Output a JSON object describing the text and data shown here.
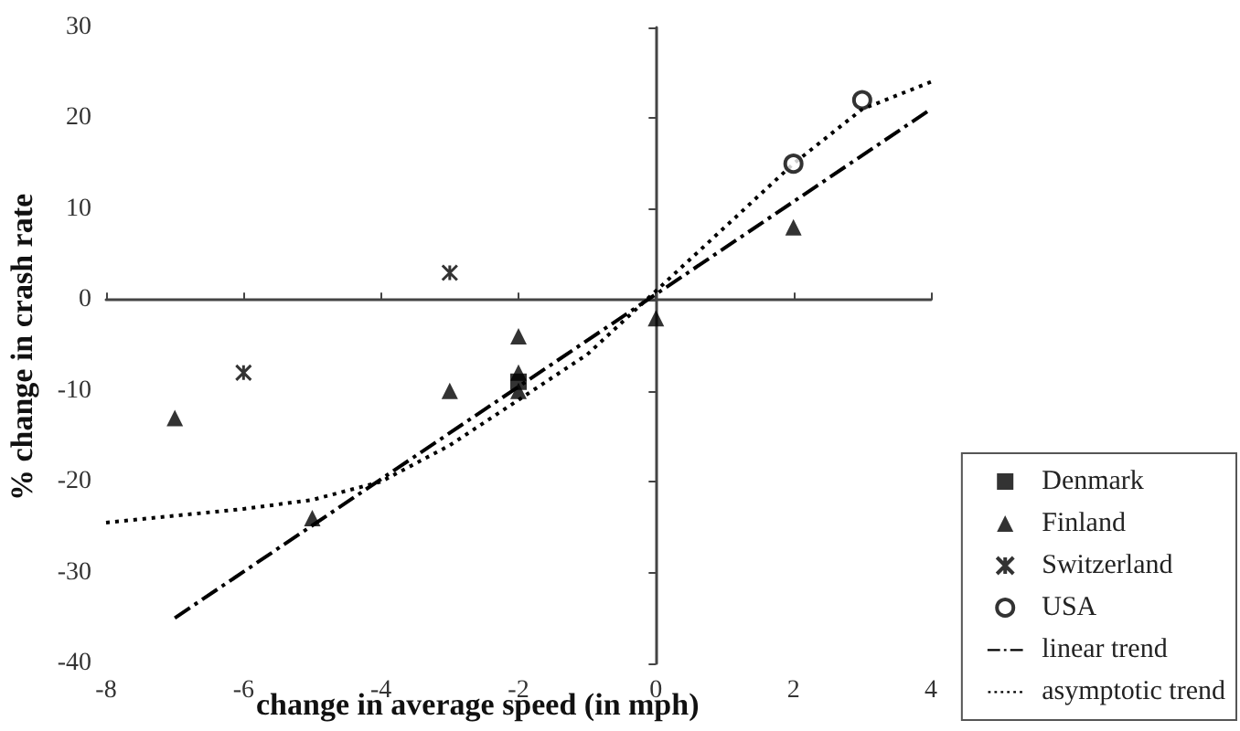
{
  "chart_data": {
    "type": "scatter",
    "xlabel": "change in average speed (in mph)",
    "ylabel": "% change in crash rate",
    "xlim": [
      -8,
      4
    ],
    "xticks": [
      -8,
      -6,
      -4,
      -2,
      0,
      2,
      4
    ],
    "ylim": [
      -40,
      30
    ],
    "yticks": [
      -40,
      -30,
      -20,
      -10,
      0,
      10,
      20,
      30
    ],
    "legend": "bottom right",
    "series": [
      {
        "name": "Denmark",
        "marker": "square",
        "color": "#000000",
        "x": [
          -2
        ],
        "values": [
          -9
        ]
      },
      {
        "name": "Finland",
        "marker": "triangle",
        "color": "#000000",
        "x": [
          -7,
          -5,
          -3,
          -2,
          -2,
          -2,
          0,
          2
        ],
        "values": [
          -13,
          -24,
          -10,
          -4,
          -8,
          -10,
          -2,
          8
        ]
      },
      {
        "name": "Switzerland",
        "marker": "cross",
        "color": "#000000",
        "x": [
          -6,
          -3
        ],
        "values": [
          -8,
          3
        ]
      },
      {
        "name": "USA",
        "marker": "circle",
        "color": "#000000",
        "x": [
          2,
          3
        ],
        "values": [
          15,
          22
        ]
      },
      {
        "name": "linear trend",
        "type": "line",
        "marker": "none",
        "line_style": "dashed",
        "color": "#000000",
        "x": [
          -7,
          4
        ],
        "values": [
          -35,
          21
        ]
      },
      {
        "name": "asymptotic trend",
        "type": "line",
        "marker": "none",
        "line_style": "dotted",
        "color": "#000000",
        "x": [
          -8,
          -6,
          -5,
          -4,
          -3,
          -2,
          -1,
          0,
          1,
          2,
          3,
          4
        ],
        "values": [
          -24.5,
          -23,
          -22,
          -20,
          -16,
          -11,
          -6,
          1,
          8,
          15,
          21,
          24
        ]
      }
    ]
  }
}
